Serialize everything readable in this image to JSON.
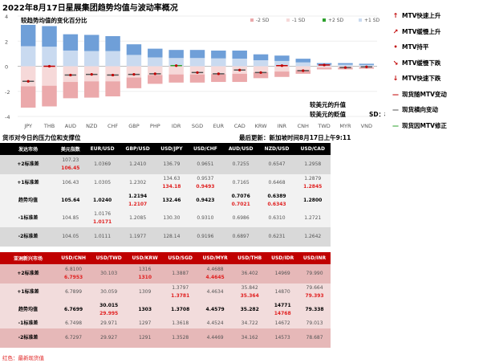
{
  "title": "2022年8月17日星展集团趋势均值与波动率概况",
  "chart_data": {
    "type": "bar",
    "title": "较趋势均值的变化百分比",
    "categories": [
      "JPY",
      "THB",
      "AUD",
      "NZD",
      "CHF",
      "GBP",
      "PHP",
      "IDR",
      "SGD",
      "EUR",
      "CAD",
      "KRW",
      "INR",
      "CNH",
      "TWD",
      "MYR",
      "VND"
    ],
    "plus2sd": [
      3.3,
      3.2,
      2.55,
      2.5,
      2.4,
      1.75,
      1.4,
      1.3,
      1.3,
      1.25,
      1.25,
      0.95,
      0.85,
      0.6,
      0.25,
      0.25,
      0.2
    ],
    "plus1sd": [
      1.6,
      1.55,
      1.25,
      1.2,
      1.2,
      0.9,
      0.7,
      0.65,
      0.65,
      0.62,
      0.6,
      0.48,
      0.42,
      0.3,
      0.12,
      0.12,
      0.1
    ],
    "spot": [
      -1.2,
      0,
      -0.7,
      -0.65,
      -0.7,
      -0.65,
      -0.6,
      0.05,
      -0.5,
      -0.6,
      -0.3,
      -0.5,
      0.05,
      -0.35,
      0.1,
      -0.1,
      -0.05
    ],
    "ylim": [
      -4,
      4
    ],
    "yticks": [
      4,
      2,
      0,
      -2,
      -4
    ],
    "legend": [
      "-2 SD",
      "-1 SD",
      "+2 SD",
      "+1 SD"
    ],
    "annotations": [
      "较美元的升值",
      "较美元的贬值",
      "SD：标准差"
    ],
    "colors": {
      "plus2": "#6f9fd8",
      "plus1": "#c9daf0",
      "minus1": "#f6d9d9",
      "minus2": "#eba9ab",
      "spot": "#c00000",
      "correction": "#2ca02c"
    }
  },
  "legend": [
    {
      "icon": "arrow-up-fast-icon",
      "label": "MTV快速上升",
      "glyph": "↑"
    },
    {
      "icon": "arrow-up-slow-icon",
      "label": "MTV缓慢上升",
      "glyph": "↗"
    },
    {
      "icon": "flat-dot-icon",
      "label": "MTV持平",
      "glyph": "•"
    },
    {
      "icon": "arrow-down-slow-icon",
      "label": "MTV缓慢下跌",
      "glyph": "↘"
    },
    {
      "icon": "arrow-down-fast-icon",
      "label": "MTV快速下跌",
      "glyph": "↓"
    },
    {
      "icon": "red-dash-icon",
      "label": "现货随MTV变动",
      "glyph": "—",
      "color": "#c00000"
    },
    {
      "icon": "gray-dash-icon",
      "label": "现货横向变动",
      "glyph": "—",
      "color": "#555"
    },
    {
      "icon": "green-dash-icon",
      "label": "现货因MTV修正",
      "glyph": "—",
      "color": "#2ca02c"
    }
  ],
  "section_title": "货币对今日的压力位和支撑位",
  "last_update": "最后更新：新加坡时间8月17日上午9:11",
  "table1": {
    "headers": [
      "发达市场",
      "美元指数",
      "EUR/USD",
      "GBP/USD",
      "USD/JPY",
      "USD/CHF",
      "AUD/USD",
      "NZD/USD",
      "USD/CAD"
    ],
    "rows": [
      {
        "label": "+2标准差",
        "values": [
          "107.23",
          "1.0369",
          "1.2410",
          "136.79",
          "0.9651",
          "0.7255",
          "0.6547",
          "1.2958"
        ],
        "red": [
          "106.45",
          "",
          "",
          "",
          "",
          "",
          "",
          ""
        ]
      },
      {
        "label": "+1标准差",
        "values": [
          "106.43",
          "1.0305",
          "1.2302",
          "134.63",
          "0.9537",
          "0.7165",
          "0.6468",
          "1.2879"
        ],
        "red": [
          "",
          "",
          "",
          "134.18",
          "0.9493",
          "",
          "",
          "1.2845"
        ]
      },
      {
        "label": "趋势均值",
        "values": [
          "105.64",
          "1.0240",
          "1.2194",
          "132.46",
          "0.9423",
          "0.7076",
          "0.6389",
          "1.2800"
        ],
        "red": [
          "",
          "",
          "1.2107",
          "",
          "",
          "0.7021",
          "0.6343",
          ""
        ]
      },
      {
        "label": "-1标准差",
        "values": [
          "104.85",
          "1.0176",
          "1.2085",
          "130.30",
          "0.9310",
          "0.6986",
          "0.6310",
          "1.2721"
        ],
        "red": [
          "",
          "1.0171",
          "",
          "",
          "",
          "",
          "",
          ""
        ]
      },
      {
        "label": "-2标准差",
        "values": [
          "104.05",
          "1.0111",
          "1.1977",
          "128.14",
          "0.9196",
          "0.6897",
          "0.6231",
          "1.2642"
        ],
        "red": [
          "",
          "",
          "",
          "",
          "",
          "",
          "",
          ""
        ]
      }
    ]
  },
  "table2": {
    "headers": [
      "亚洲新兴市场",
      "USD/CNH",
      "USD/TWD",
      "USD/KRW",
      "USD/SGD",
      "USD/MYR",
      "USD/THB",
      "USD/IDR",
      "USD/INR"
    ],
    "rows": [
      {
        "label": "+2标准差",
        "values": [
          "6.8100",
          "30.103",
          "1316",
          "1.3887",
          "4.4688",
          "36.402",
          "14969",
          "79.990"
        ],
        "red": [
          "6.7953",
          "",
          "1310",
          "",
          "4.4645",
          "",
          "",
          ""
        ]
      },
      {
        "label": "+1标准差",
        "values": [
          "6.7899",
          "30.059",
          "1309",
          "1.3797",
          "4.4634",
          "35.842",
          "14870",
          "79.664"
        ],
        "red": [
          "",
          "",
          "",
          "1.3781",
          "",
          "35.364",
          "",
          "79.393"
        ]
      },
      {
        "label": "趋势均值",
        "values": [
          "6.7699",
          "30.015",
          "1303",
          "1.3708",
          "4.4579",
          "35.282",
          "14771",
          "79.338"
        ],
        "red": [
          "",
          "29.995",
          "",
          "",
          "",
          "",
          "14768",
          ""
        ]
      },
      {
        "label": "-1标准差",
        "values": [
          "6.7498",
          "29.971",
          "1297",
          "1.3618",
          "4.4524",
          "34.722",
          "14672",
          "79.013"
        ],
        "red": [
          "",
          "",
          "",
          "",
          "",
          "",
          "",
          ""
        ]
      },
      {
        "label": "-2标准差",
        "values": [
          "6.7297",
          "29.927",
          "1291",
          "1.3528",
          "4.4469",
          "34.162",
          "14573",
          "78.687"
        ],
        "red": [
          "",
          "",
          "",
          "",
          "",
          "",
          "",
          ""
        ]
      }
    ]
  },
  "footnote": "红色：最新现货值"
}
